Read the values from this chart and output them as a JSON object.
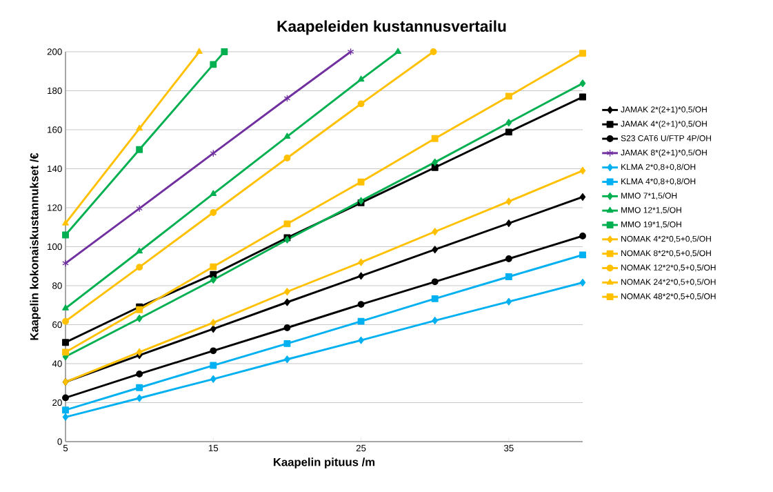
{
  "chart_data": {
    "type": "line",
    "title": "Kaapeleiden kustannusvertailu",
    "xlabel": "Kaapelin pituus /m",
    "ylabel": "Kaapelin kokonaiskustannukset /€",
    "x": [
      5,
      10,
      15,
      20,
      25,
      30,
      35,
      40
    ],
    "xlim": [
      5,
      40
    ],
    "xticks": [
      5,
      15,
      25,
      35
    ],
    "ylim": [
      0,
      200
    ],
    "yticks": [
      0,
      20,
      40,
      60,
      80,
      100,
      120,
      140,
      160,
      180,
      200
    ],
    "grid": "y",
    "legend": "right",
    "line_style": "solid",
    "series": [
      {
        "name": "JAMAK 2*(2+1)*0,5/OH",
        "color": "#000000",
        "marker": "diamond",
        "values": [
          30.6,
          44.3,
          57.8,
          71.5,
          85,
          98.5,
          112,
          125.5
        ]
      },
      {
        "name": "JAMAK 4*(2+1)*0,5/OH",
        "color": "#000000",
        "marker": "square",
        "values": [
          50.9,
          69.1,
          85.8,
          104.6,
          122.5,
          140.6,
          158.8,
          176.8
        ]
      },
      {
        "name": "S23 CAT6 U/FTP 4P/OH",
        "color": "#000000",
        "marker": "circle",
        "values": [
          22.5,
          34.7,
          46.6,
          58.4,
          70.4,
          82,
          93.8,
          105.5
        ]
      },
      {
        "name": "JAMAK 8*(2+1)*0,5/OH",
        "color": "#7030a0",
        "marker": "cross",
        "x": [
          5,
          10,
          15,
          20,
          24.3
        ],
        "values": [
          91.5,
          119.6,
          147.9,
          176.1,
          200
        ]
      },
      {
        "name": "KLMA 2*0,8+0,8/OH",
        "color": "#00b0f0",
        "marker": "diamond",
        "values": [
          12.6,
          22.3,
          32.1,
          42.2,
          52,
          62.1,
          71.8,
          81.6
        ]
      },
      {
        "name": "KLMA 4*0,8+0,8/OH",
        "color": "#00b0f0",
        "marker": "square",
        "values": [
          16.2,
          27.7,
          39.1,
          50.3,
          61.7,
          73.3,
          84.6,
          95.8
        ]
      },
      {
        "name": "MMO 7*1,5/OH",
        "color": "#00b050",
        "marker": "diamond",
        "values": [
          43.6,
          63.2,
          83,
          103.6,
          123.5,
          143.3,
          163.6,
          183.8
        ]
      },
      {
        "name": "MMO 12*1,5/OH",
        "color": "#00b050",
        "marker": "triangle",
        "x": [
          5,
          10,
          15,
          20,
          25,
          27.5
        ],
        "values": [
          68.4,
          97.6,
          127.1,
          156.5,
          185.8,
          200
        ]
      },
      {
        "name": "MMO 19*1,5/OH",
        "color": "#00b050",
        "marker": "square",
        "x": [
          5,
          10,
          15,
          15.75
        ],
        "values": [
          106,
          149.8,
          193.5,
          200
        ]
      },
      {
        "name": "NOMAK 4*2*0,5+0,5/OH",
        "color": "#ffc000",
        "marker": "diamond",
        "values": [
          30.6,
          45.9,
          61,
          76.9,
          92,
          107.7,
          123.2,
          139
        ]
      },
      {
        "name": "NOMAK 8*2*0,5+0,5/OH",
        "color": "#ffc000",
        "marker": "square",
        "values": [
          45.9,
          67.7,
          89.7,
          111.7,
          133.2,
          155.5,
          177.2,
          199.2
        ]
      },
      {
        "name": "NOMAK 12*2*0,5+0,5/OH",
        "color": "#ffc000",
        "marker": "circle",
        "x": [
          5,
          10,
          15,
          20,
          25,
          29.9
        ],
        "values": [
          61.7,
          89.5,
          117.5,
          145.5,
          173.3,
          200
        ]
      },
      {
        "name": "NOMAK 24*2*0,5+0,5/OH",
        "color": "#ffc000",
        "marker": "triangle",
        "x": [
          5,
          10,
          14.05
        ],
        "values": [
          112,
          160.6,
          200
        ]
      },
      {
        "name": "NOMAK 48*2*0,5+0,5/OH",
        "color": "#ffc000",
        "marker": "square",
        "values": [
          null,
          null,
          null,
          null,
          null,
          null,
          null,
          null
        ]
      }
    ]
  }
}
